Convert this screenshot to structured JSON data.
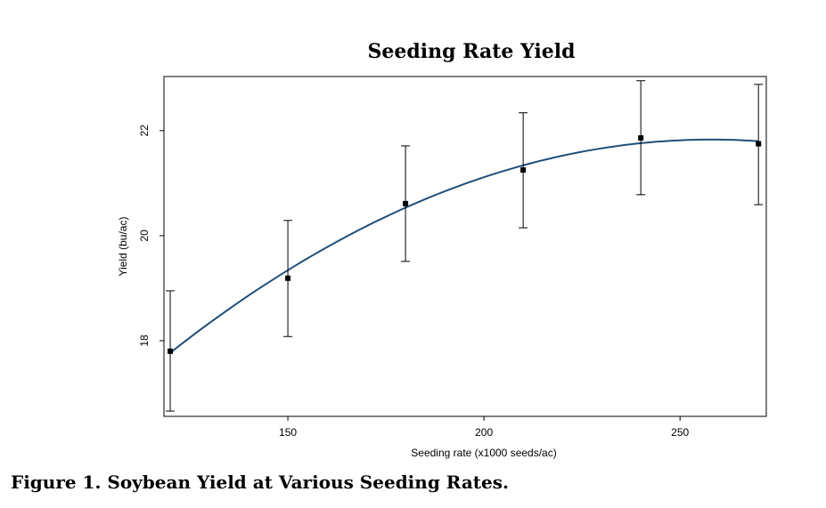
{
  "chart_data": {
    "type": "scatter",
    "title": "Seeding Rate Yield",
    "xlabel": "Seeding rate (x1000 seeds/ac)",
    "ylabel": "Yield (bu/ac)",
    "xlim": [
      118.4,
      272
    ],
    "ylim": [
      16.56,
      23.03
    ],
    "xticks": [
      150,
      200,
      250
    ],
    "yticks": [
      18,
      20,
      22
    ],
    "grid": false,
    "points": [
      {
        "x": 120,
        "y": 17.8,
        "lo": 16.66,
        "hi": 18.95
      },
      {
        "x": 150,
        "y": 19.19,
        "lo": 18.08,
        "hi": 20.29
      },
      {
        "x": 180,
        "y": 20.61,
        "lo": 19.51,
        "hi": 21.71
      },
      {
        "x": 210,
        "y": 21.25,
        "lo": 20.15,
        "hi": 22.34
      },
      {
        "x": 240,
        "y": 21.86,
        "lo": 20.78,
        "hi": 22.95
      },
      {
        "x": 270,
        "y": 21.75,
        "lo": 20.59,
        "hi": 22.88
      }
    ],
    "fit_curve": {
      "type": "quadratic",
      "peak_x": 258,
      "peak_y": 21.83,
      "curvature": -0.0002132,
      "x_range": [
        120,
        270
      ]
    },
    "colors": {
      "curve": "#1f4e79",
      "points": "#000000"
    }
  },
  "caption": "Figure 1. Soybean Yield at Various Seeding Rates."
}
